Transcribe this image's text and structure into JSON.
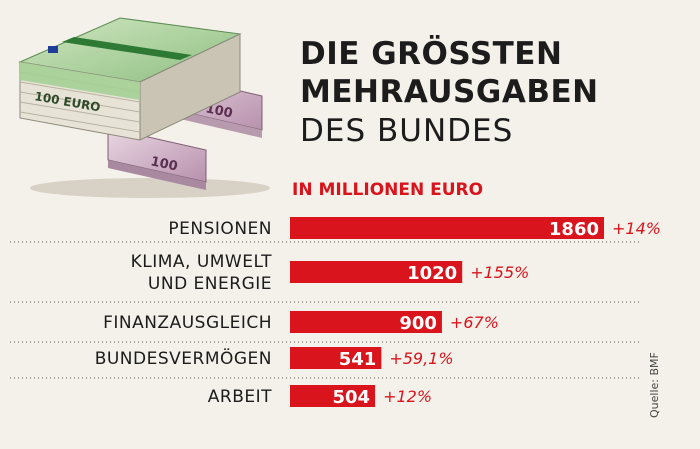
{
  "title": {
    "line1": "DIE GRÖSSTEN",
    "line2": "MEHRAUSGABEN",
    "line3": "DES BUNDES"
  },
  "subtitle": "IN MILLIONEN EURO",
  "source": "Quelle: BMF",
  "colors": {
    "bar": "#d9141c",
    "bar_text": "#ffffff",
    "change_text": "#d9141c",
    "label": "#1c1c1c",
    "divider": "#555555"
  },
  "illustration": "euro-banknote-stacks",
  "chart_data": {
    "type": "bar",
    "orientation": "horizontal",
    "categories": [
      [
        "PENSIONEN"
      ],
      [
        "KLIMA, UMWELT",
        "UND ENERGIE"
      ],
      [
        "FINANZAUSGLEICH"
      ],
      [
        "BUNDESVERMÖGEN"
      ],
      [
        "ARBEIT"
      ]
    ],
    "values": [
      1860,
      1020,
      900,
      541,
      504
    ],
    "value_labels": [
      "1860",
      "1020",
      "900",
      "541",
      "504"
    ],
    "changes": [
      "+14%",
      "+155%",
      "+67%",
      "+59,1%",
      "+12%"
    ],
    "xlim": [
      0,
      1860
    ],
    "grid": false
  }
}
